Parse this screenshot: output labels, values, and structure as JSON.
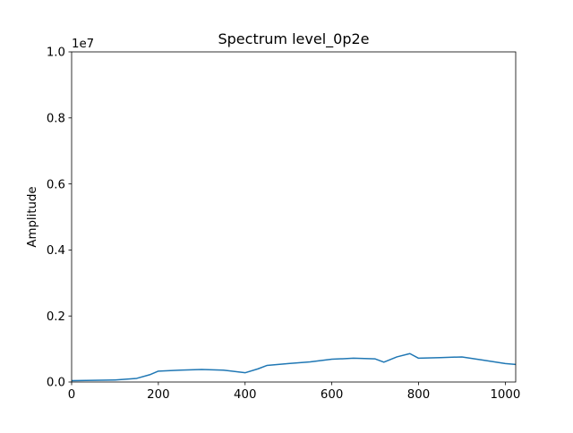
{
  "chart_data": {
    "type": "line",
    "title": "Spectrum level_0p2e",
    "xlabel": "",
    "ylabel": "Amplitude",
    "xlim": [
      0,
      1024
    ],
    "ylim": [
      0,
      10000000
    ],
    "y_offset_label": "1e7",
    "x_ticks": [
      0,
      200,
      400,
      600,
      800,
      1000
    ],
    "x_tick_labels": [
      "0",
      "200",
      "400",
      "600",
      "800",
      "1000"
    ],
    "y_ticks": [
      0,
      2000000,
      4000000,
      6000000,
      8000000,
      10000000
    ],
    "y_tick_labels": [
      "0.0",
      "0.2",
      "0.4",
      "0.6",
      "0.8",
      "1.0"
    ],
    "grid": false,
    "legend": "none",
    "series": [
      {
        "color": "#1f77b4",
        "x": [
          0,
          50,
          100,
          150,
          180,
          200,
          250,
          300,
          350,
          400,
          430,
          450,
          500,
          550,
          600,
          650,
          700,
          720,
          750,
          780,
          800,
          850,
          900,
          950,
          1000,
          1024
        ],
        "y": [
          40000,
          50000,
          60000,
          110000,
          220000,
          330000,
          360000,
          380000,
          360000,
          280000,
          400000,
          500000,
          560000,
          610000,
          690000,
          720000,
          700000,
          600000,
          760000,
          860000,
          720000,
          740000,
          760000,
          660000,
          560000,
          530000
        ]
      }
    ]
  }
}
